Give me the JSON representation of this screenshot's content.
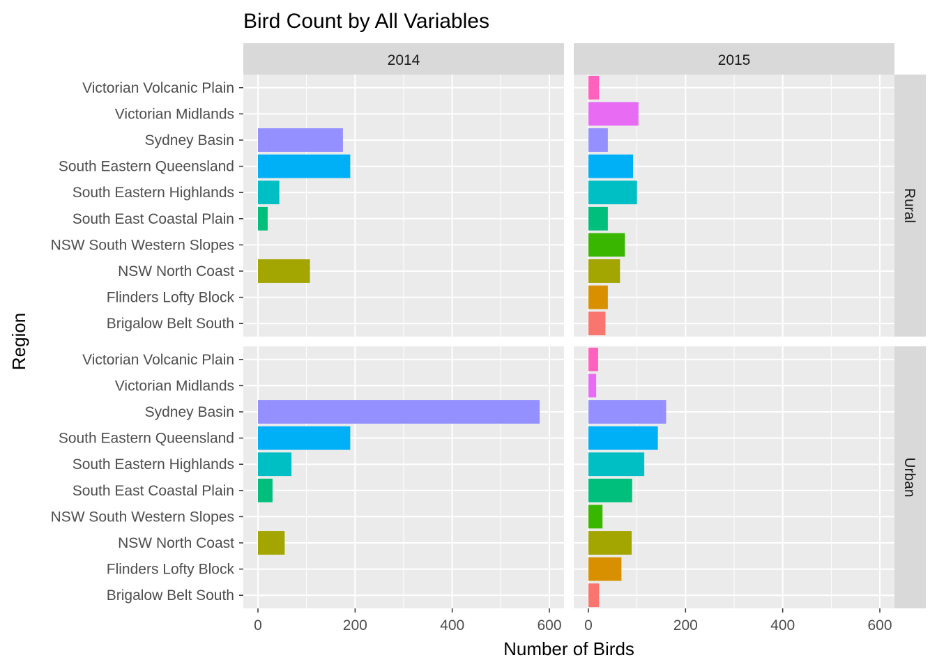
{
  "chart_data": {
    "type": "bar",
    "orientation": "horizontal",
    "title": "Bird Count by All Variables",
    "xlabel": "Number of Birds",
    "ylabel": "Region",
    "xlim": [
      0,
      600
    ],
    "xticks": [
      0,
      200,
      400,
      600
    ],
    "grid": true,
    "legend": "none",
    "facet_cols": [
      "2014",
      "2015"
    ],
    "facet_rows": [
      "Rural",
      "Urban"
    ],
    "categories": [
      "Brigalow Belt South",
      "Flinders Lofty Block",
      "NSW North Coast",
      "NSW South Western Slopes",
      "South East Coastal Plain",
      "South Eastern Highlands",
      "South Eastern Queensland",
      "Sydney Basin",
      "Victorian Midlands",
      "Victorian Volcanic Plain"
    ],
    "colors": [
      "#F8766D",
      "#D89000",
      "#A3A500",
      "#39B600",
      "#00BF7D",
      "#00BFC4",
      "#00B0F6",
      "#9590FF",
      "#E76BF3",
      "#FF62BC"
    ],
    "panels": [
      {
        "year": "2014",
        "setting": "Rural",
        "values": [
          null,
          null,
          107,
          null,
          20,
          44,
          190,
          175,
          null,
          null
        ]
      },
      {
        "year": "2015",
        "setting": "Rural",
        "values": [
          35,
          40,
          65,
          75,
          40,
          100,
          92,
          40,
          103,
          22
        ]
      },
      {
        "year": "2014",
        "setting": "Urban",
        "values": [
          null,
          null,
          55,
          null,
          30,
          69,
          190,
          580,
          null,
          null
        ]
      },
      {
        "year": "2015",
        "setting": "Urban",
        "values": [
          22,
          68,
          89,
          29,
          90,
          115,
          143,
          160,
          16,
          20
        ]
      }
    ]
  }
}
